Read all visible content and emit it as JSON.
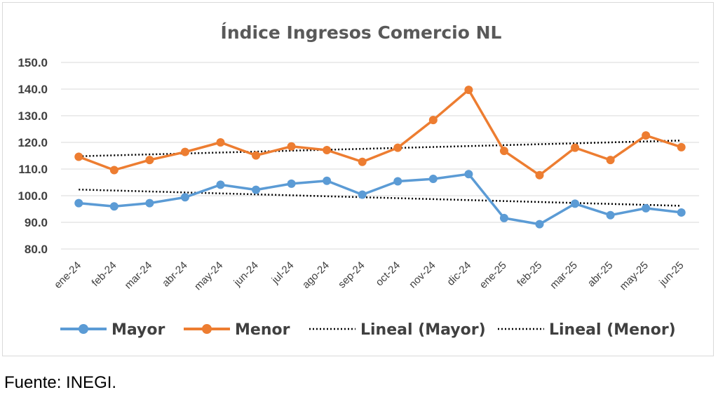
{
  "chart_data": {
    "type": "line",
    "title": "Índice Ingresos Comercio NL",
    "categories": [
      "ene-24",
      "feb-24",
      "mar-24",
      "abr-24",
      "may-24",
      "jun-24",
      "jul-24",
      "ago-24",
      "sep-24",
      "oct-24",
      "nov-24",
      "dic-24",
      "ene-25",
      "feb-25",
      "mar-25",
      "abr-25",
      "may-25",
      "jun-25"
    ],
    "ylim": [
      80,
      150
    ],
    "yticks": [
      "150.0",
      "140.0",
      "130.0",
      "120.0",
      "110.0",
      "100.0",
      "90.0",
      "80.0"
    ],
    "grid": true,
    "legend_position": "bottom",
    "series": [
      {
        "name": "Mayor",
        "color": "#5b9bd5",
        "values": [
          97.2,
          96.0,
          97.2,
          99.4,
          104.1,
          102.2,
          104.5,
          105.6,
          100.4,
          105.4,
          106.3,
          108.1,
          91.6,
          89.3,
          97.0,
          92.7,
          95.3,
          93.7
        ]
      },
      {
        "name": "Menor",
        "color": "#ed7d31",
        "values": [
          114.6,
          109.6,
          113.4,
          116.4,
          120.0,
          115.1,
          118.5,
          117.1,
          112.7,
          118.0,
          128.4,
          139.7,
          116.8,
          107.7,
          118.0,
          113.4,
          122.6,
          118.2
        ]
      }
    ],
    "trendlines": [
      {
        "name": "Lineal (Mayor)",
        "color": "#000000",
        "start": 102.3,
        "end": 96.2
      },
      {
        "name": "Lineal (Menor)",
        "color": "#000000",
        "start": 114.8,
        "end": 120.7
      }
    ]
  },
  "source_note": "Fuente: INEGI."
}
